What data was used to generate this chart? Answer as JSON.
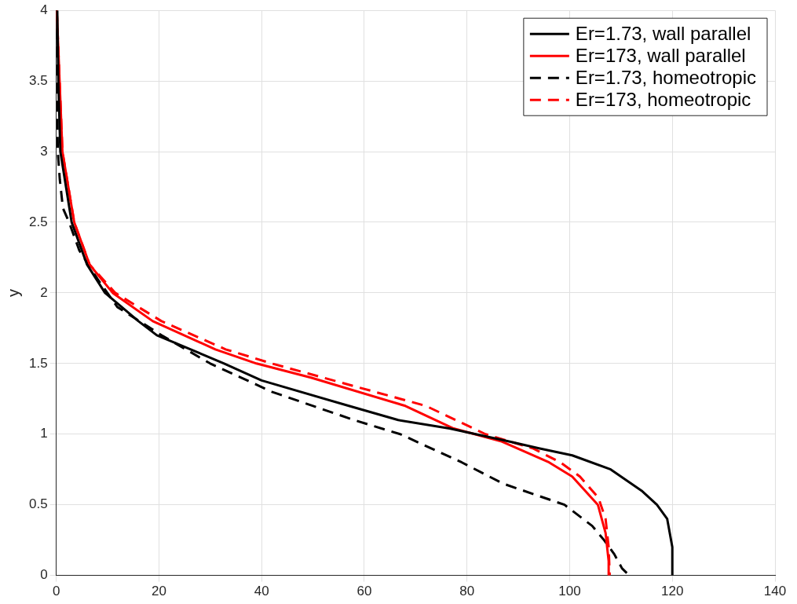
{
  "chart_data": {
    "type": "line",
    "ylabel": "y",
    "xlim": [
      0,
      140
    ],
    "ylim": [
      0,
      4
    ],
    "xticks": [
      0,
      20,
      40,
      60,
      80,
      100,
      120,
      140
    ],
    "yticks": [
      0,
      0.5,
      1,
      1.5,
      2,
      2.5,
      3,
      3.5,
      4
    ],
    "grid": true,
    "legend": "top right",
    "series": [
      {
        "name": "Er=1.73, wall parallel",
        "color": "#000000",
        "line_style": "solid",
        "x": [
          0.2,
          0.4,
          0.8,
          3,
          6,
          9.5,
          16,
          19.6,
          32.7,
          40,
          57,
          66.6,
          76.6,
          88,
          94,
          100.5,
          108,
          114,
          117,
          119,
          120,
          120
        ],
        "values": [
          4,
          3.5,
          3,
          2.5,
          2.2,
          2,
          1.8,
          1.7,
          1.5,
          1.38,
          1.2,
          1.1,
          1.04,
          0.95,
          0.9,
          0.85,
          0.75,
          0.6,
          0.5,
          0.4,
          0.2,
          0
        ]
      },
      {
        "name": "Er=173, wall parallel",
        "color": "#ff0000",
        "line_style": "solid",
        "x": [
          0.1,
          1.2,
          3.5,
          6.5,
          11,
          18.8,
          31,
          39,
          49.6,
          68,
          77.4,
          86.6,
          96,
          100.5,
          105.5,
          107,
          107.6,
          107.6
        ],
        "values": [
          4,
          3,
          2.5,
          2.2,
          2,
          1.8,
          1.6,
          1.5,
          1.4,
          1.2,
          1.04,
          0.95,
          0.8,
          0.7,
          0.5,
          0.3,
          0.1,
          0
        ]
      },
      {
        "name": "Er=1.73, homeotropic",
        "color": "#000000",
        "line_style": "dashed",
        "x": [
          0,
          0.3,
          0.7,
          1.3,
          2.5,
          4.5,
          8,
          11.9,
          20.5,
          30,
          42,
          58,
          67,
          79,
          87,
          99,
          104.4,
          106.7,
          108.7,
          110.2,
          111.6
        ],
        "values": [
          4,
          3,
          2.8,
          2.6,
          2.5,
          2.3,
          2.1,
          1.9,
          1.7,
          1.5,
          1.3,
          1.1,
          1,
          0.8,
          0.65,
          0.5,
          0.35,
          0.25,
          0.15,
          0.05,
          0
        ]
      },
      {
        "name": "Er=173, homeotropic",
        "color": "#ff0000",
        "line_style": "dashed",
        "x": [
          0.1,
          1.2,
          3.5,
          6.5,
          11.5,
          20.5,
          33,
          42,
          52,
          72,
          83.6,
          92.8,
          98.2,
          102,
          105.6,
          107,
          107.6,
          107.8
        ],
        "values": [
          4,
          3,
          2.5,
          2.2,
          2,
          1.8,
          1.6,
          1.5,
          1.4,
          1.2,
          1,
          0.9,
          0.8,
          0.7,
          0.55,
          0.4,
          0.2,
          0
        ]
      }
    ]
  }
}
